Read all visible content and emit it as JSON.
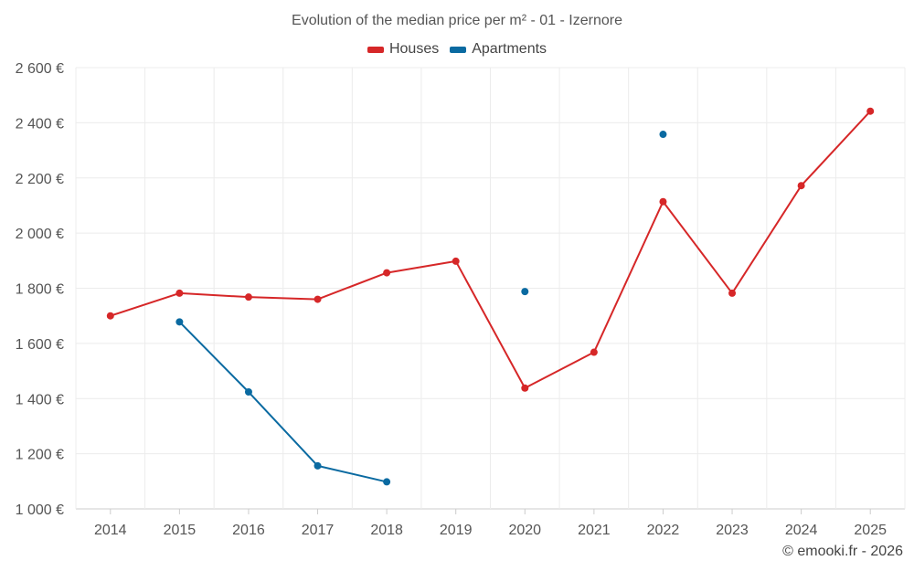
{
  "chart_data": {
    "type": "line",
    "title": "Evolution of the median price per m² - 01 - Izernore",
    "categories": [
      "2014",
      "2015",
      "2016",
      "2017",
      "2018",
      "2019",
      "2020",
      "2021",
      "2022",
      "2023",
      "2024",
      "2025"
    ],
    "y_ticks": [
      1000,
      1200,
      1400,
      1600,
      1800,
      2000,
      2200,
      2400,
      2600
    ],
    "y_tick_labels": [
      "1 000 €",
      "1 200 €",
      "1 400 €",
      "1 600 €",
      "1 800 €",
      "2 000 €",
      "2 200 €",
      "2 400 €",
      "2 600 €"
    ],
    "ylim": [
      1000,
      2600
    ],
    "xlabel": "",
    "ylabel": "",
    "grid": true,
    "legend_position": "top-center",
    "series": [
      {
        "name": "Houses",
        "color": "#d62728",
        "values": [
          1700,
          1782,
          1768,
          1760,
          1856,
          1898,
          1438,
          1568,
          2114,
          1782,
          2172,
          2442
        ]
      },
      {
        "name": "Apartments",
        "color": "#0a6aa1",
        "values": [
          null,
          1678,
          1424,
          1156,
          1098,
          null,
          1788,
          null,
          2358,
          null,
          null,
          null
        ]
      }
    ]
  },
  "credit": "© emooki.fr - 2026"
}
